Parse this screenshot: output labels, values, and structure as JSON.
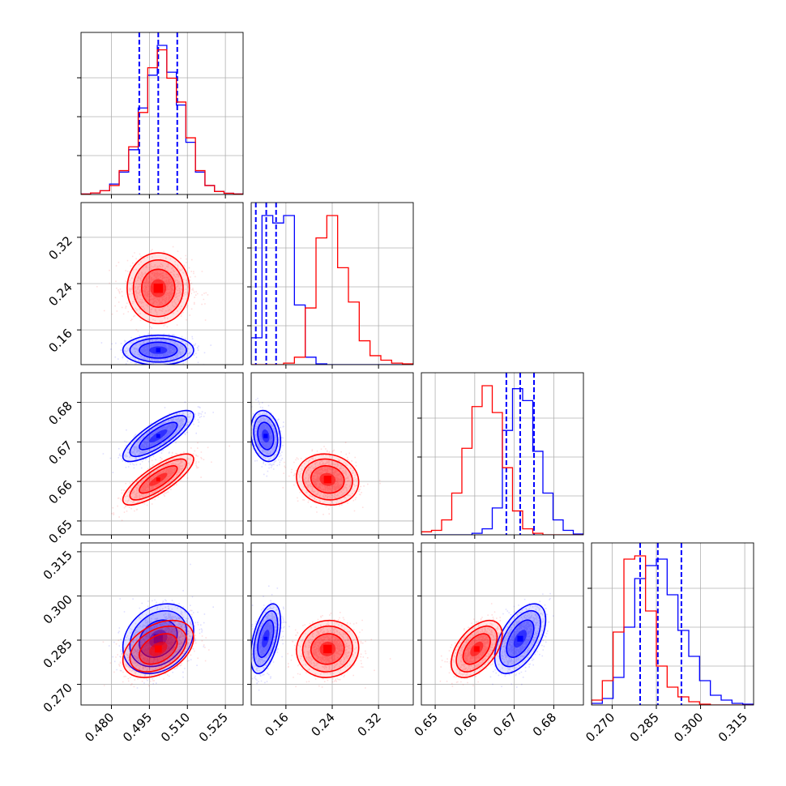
{
  "chart_data": {
    "type": "corner",
    "grid": true,
    "legend": "none",
    "params": [
      {
        "range": [
          0.468,
          0.532
        ],
        "ticks": [
          0.48,
          0.495,
          0.51,
          0.525
        ],
        "tick_labels": [
          "0.480",
          "0.495",
          "0.510",
          "0.525"
        ]
      },
      {
        "range": [
          0.1,
          0.38
        ],
        "ticks": [
          0.16,
          0.24,
          0.32
        ],
        "tick_labels": [
          "0.16",
          "0.24",
          "0.32"
        ]
      },
      {
        "range": [
          0.6465,
          0.6875
        ],
        "ticks": [
          0.65,
          0.66,
          0.67,
          0.68
        ],
        "tick_labels": [
          "0.65",
          "0.66",
          "0.67",
          "0.68"
        ]
      },
      {
        "range": [
          0.263,
          0.318
        ],
        "ticks": [
          0.27,
          0.285,
          0.3,
          0.315
        ],
        "tick_labels": [
          "0.270",
          "0.285",
          "0.300",
          "0.315"
        ]
      }
    ],
    "series": [
      {
        "color": "#0000ff",
        "mean": [
          0.4985,
          0.125,
          0.6715,
          0.2855
        ],
        "sd": [
          0.0065,
          0.012,
          0.003,
          0.0055
        ],
        "corr": {
          "0-2": 0.8,
          "0-3": 0.25,
          "1-2": -0.2,
          "1-3": 0.5,
          "2-3": 0.55
        },
        "quantiles": [
          [
            0.491,
            0.4985,
            0.506
          ],
          [
            0.108,
            0.126,
            0.143
          ],
          [
            0.668,
            0.6715,
            0.675
          ],
          [
            0.2795,
            0.2855,
            0.2935
          ]
        ],
        "hist": [
          [
            0.3,
            1,
            2.5,
            7,
            15,
            30,
            58,
            80,
            100,
            82,
            60,
            35,
            15,
            6,
            2,
            0.8,
            0.3
          ],
          [
            18,
            100,
            95,
            100,
            40,
            5,
            0.5,
            0,
            0,
            0,
            0,
            0,
            0,
            0,
            0
          ],
          [
            0,
            0,
            0,
            0,
            0,
            1,
            4,
            18,
            70,
            98,
            90,
            56,
            28,
            10,
            3,
            0.5
          ],
          [
            1,
            4,
            17,
            48,
            78,
            86,
            90,
            68,
            46,
            30,
            15,
            6,
            3,
            1,
            0.5
          ]
        ]
      },
      {
        "color": "#ff0000",
        "mean": [
          0.4985,
          0.232,
          0.6605,
          0.282
        ],
        "sd": [
          0.0065,
          0.025,
          0.003,
          0.0045
        ],
        "corr": {
          "0-2": 0.8,
          "0-3": 0.4,
          "1-2": -0.1,
          "1-3": 0.05,
          "2-3": 0.5
        },
        "hist": [
          [
            0.3,
            1,
            2.5,
            6,
            16,
            32,
            55,
            85,
            97,
            78,
            62,
            38,
            16,
            6,
            2,
            0.8,
            0.3
          ],
          [
            0,
            0,
            0,
            1,
            5,
            38,
            85,
            100,
            65,
            42,
            16,
            6,
            3,
            1,
            0.5
          ],
          [
            2,
            3,
            10,
            28,
            58,
            86,
            100,
            82,
            45,
            16,
            4,
            1,
            0,
            0,
            0,
            0
          ],
          [
            3,
            15,
            45,
            90,
            92,
            58,
            24,
            11,
            5,
            2,
            0.5,
            0,
            0,
            0,
            0
          ]
        ]
      }
    ]
  }
}
